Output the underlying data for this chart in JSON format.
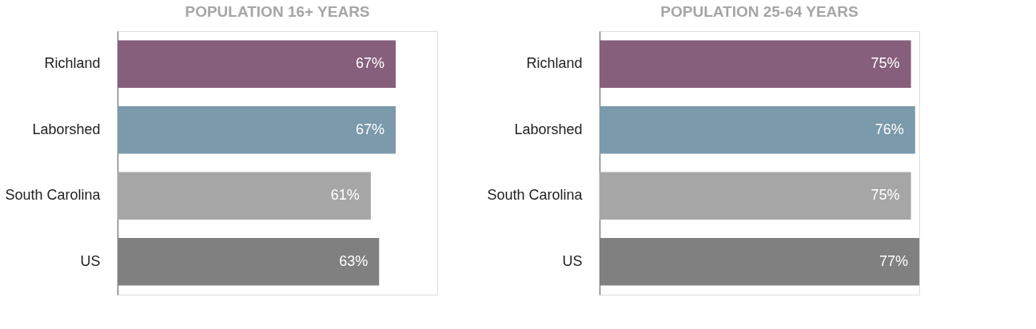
{
  "chart_data": [
    {
      "type": "bar",
      "orientation": "horizontal",
      "title": "POPULATION 16+ YEARS",
      "categories": [
        "Richland",
        "Laborshed",
        "South Carolina",
        "US"
      ],
      "values": [
        67,
        67,
        61,
        63
      ],
      "value_labels": [
        "67%",
        "67%",
        "61%",
        "63%"
      ],
      "colors": [
        "#865f7d",
        "#7b9aab",
        "#a6a6a6",
        "#808080"
      ],
      "xlim": [
        0,
        77
      ],
      "tick_labels": "y"
    },
    {
      "type": "bar",
      "orientation": "horizontal",
      "title": "POPULATION 25-64 YEARS",
      "categories": [
        "Richland",
        "Laborshed",
        "South Carolina",
        "US"
      ],
      "values": [
        75,
        76,
        75,
        77
      ],
      "value_labels": [
        "75%",
        "76%",
        "75%",
        "77%"
      ],
      "colors": [
        "#865f7d",
        "#7b9aab",
        "#a6a6a6",
        "#808080"
      ],
      "xlim": [
        0,
        77
      ],
      "tick_labels": "y"
    }
  ]
}
